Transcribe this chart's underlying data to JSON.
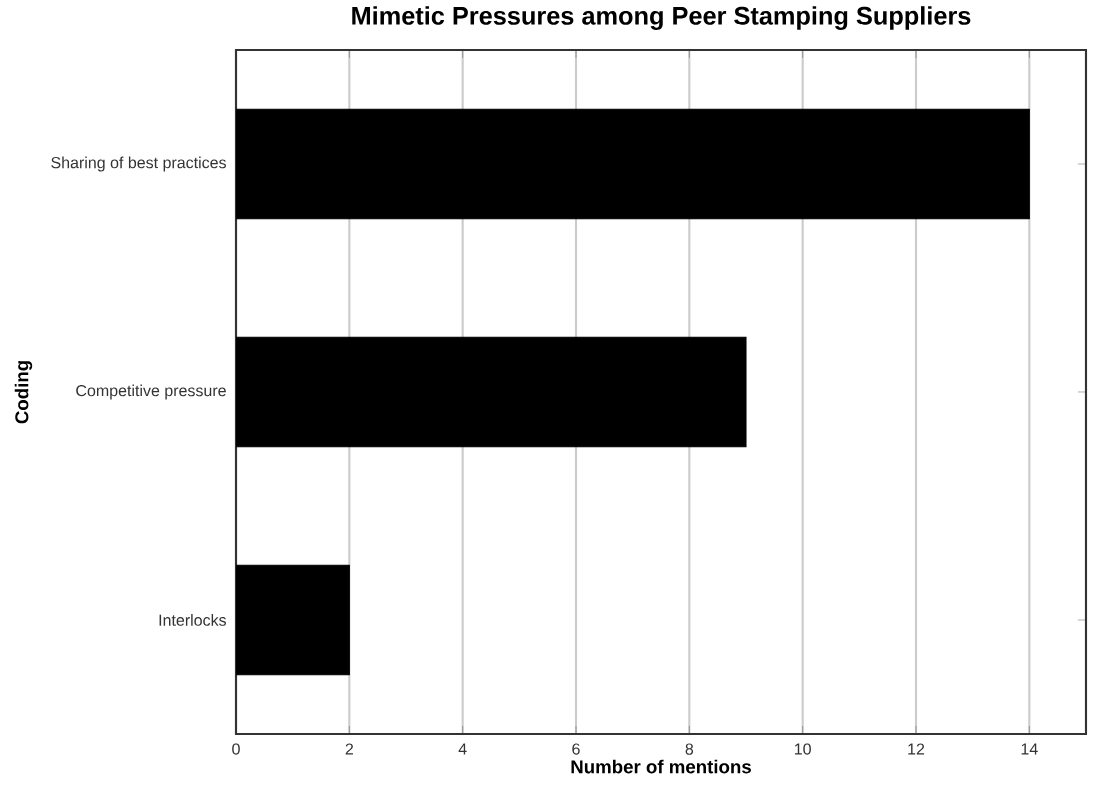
{
  "chart_data": {
    "type": "bar",
    "orientation": "horizontal",
    "title": "Mimetic Pressures among Peer Stamping Suppliers",
    "xlabel": "Number of mentions",
    "ylabel": "Coding",
    "categories": [
      "Sharing of best practices",
      "Competitive pressure",
      "Interlocks"
    ],
    "values": [
      14,
      9,
      2
    ],
    "color": "#000000",
    "xlim": [
      0,
      15
    ],
    "xticks": [
      0,
      2,
      4,
      6,
      8,
      10,
      12,
      14
    ],
    "grid": "x"
  }
}
